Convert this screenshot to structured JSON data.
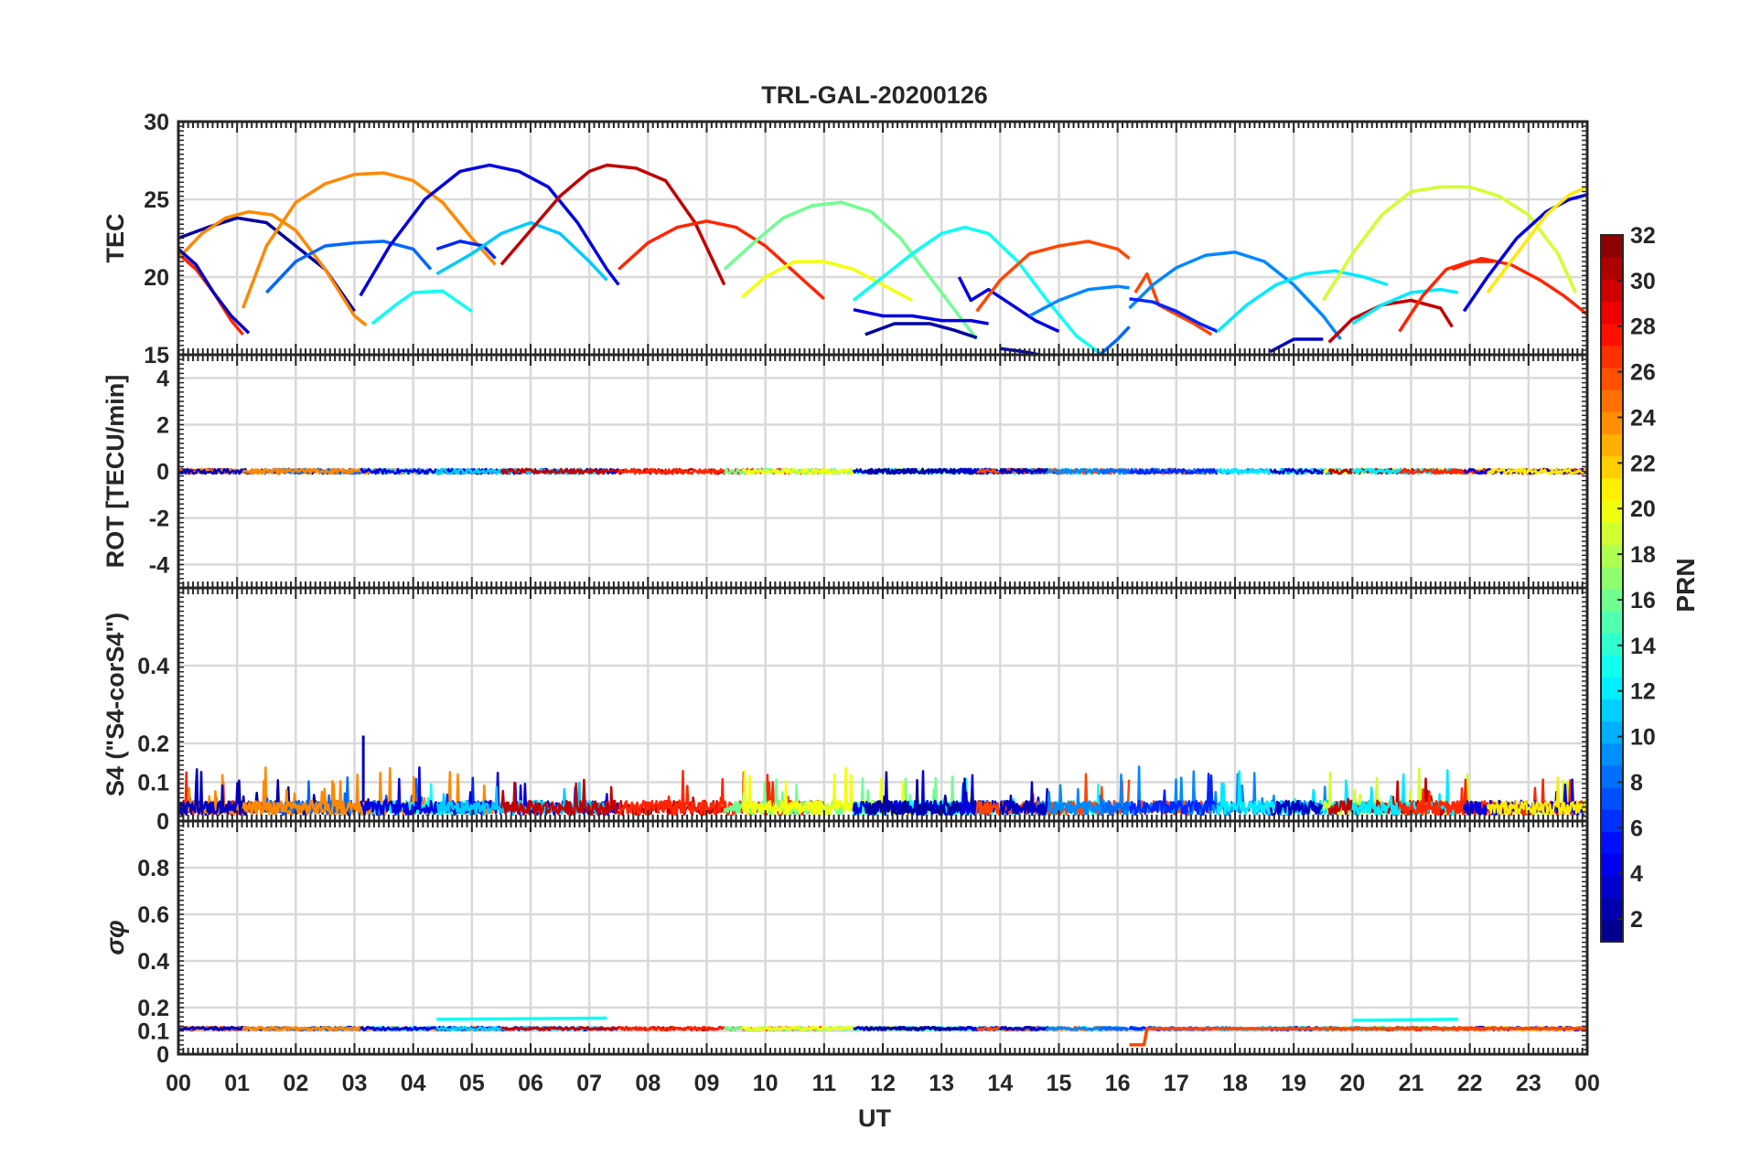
{
  "figure": {
    "title": "TRL-GAL-20200126",
    "xlabel": "UT",
    "x_tick_labels": [
      "00",
      "01",
      "02",
      "03",
      "04",
      "05",
      "06",
      "07",
      "08",
      "09",
      "10",
      "11",
      "12",
      "13",
      "14",
      "15",
      "16",
      "17",
      "18",
      "19",
      "20",
      "21",
      "22",
      "23",
      "00"
    ]
  },
  "colorbar": {
    "label": "PRN",
    "ticks": [
      2,
      4,
      6,
      8,
      10,
      12,
      14,
      16,
      18,
      20,
      22,
      24,
      26,
      28,
      30,
      32
    ],
    "range": [
      1,
      32
    ],
    "colormap": "jet"
  },
  "chart_data": [
    {
      "type": "line",
      "panel": "TEC",
      "ylabel": "TEC",
      "xlim": [
        0,
        24
      ],
      "ylim": [
        15,
        30
      ],
      "yticks": [
        15,
        20,
        25,
        30
      ],
      "grid": true,
      "series": [
        {
          "prn": 2,
          "x": [
            0.0,
            0.5,
            1.0,
            1.5,
            2.0,
            2.5,
            3.0
          ],
          "y": [
            22.5,
            23.2,
            23.8,
            23.5,
            22.0,
            20.5,
            17.8
          ]
        },
        {
          "prn": 27,
          "x": [
            0.0,
            0.3,
            0.6,
            0.9,
            1.1
          ],
          "y": [
            21.5,
            20.5,
            19.0,
            17.2,
            16.3
          ]
        },
        {
          "prn": 24,
          "x": [
            0.0,
            0.4,
            0.8,
            1.2,
            1.6,
            2.0,
            2.5,
            3.0,
            3.2
          ],
          "y": [
            21.2,
            22.8,
            23.8,
            24.2,
            24.0,
            23.0,
            20.5,
            17.5,
            16.9
          ]
        },
        {
          "prn": 3,
          "x": [
            0.0,
            0.3,
            0.6,
            0.9,
            1.2
          ],
          "y": [
            21.8,
            20.8,
            19.0,
            17.5,
            16.4
          ]
        },
        {
          "prn": 8,
          "x": [
            1.5,
            2.0,
            2.5,
            3.0,
            3.5,
            4.0,
            4.3
          ],
          "y": [
            19.0,
            21.0,
            22.0,
            22.2,
            22.3,
            21.8,
            20.5
          ]
        },
        {
          "prn": 24,
          "x": [
            1.1,
            1.5,
            2.0,
            2.5,
            3.0,
            3.5,
            4.0,
            4.5,
            5.0,
            5.4
          ],
          "y": [
            18.0,
            22.0,
            24.8,
            26.0,
            26.6,
            26.7,
            26.2,
            24.8,
            22.5,
            20.8
          ]
        },
        {
          "prn": 6,
          "x": [
            4.4,
            4.8,
            5.2,
            5.4
          ],
          "y": [
            21.8,
            22.3,
            22.0,
            21.2
          ]
        },
        {
          "prn": 13,
          "x": [
            3.3,
            3.7,
            4.0,
            4.5,
            5.0
          ],
          "y": [
            17.0,
            18.2,
            19.0,
            19.1,
            17.8
          ]
        },
        {
          "prn": 4,
          "x": [
            3.1,
            3.6,
            4.2,
            4.8,
            5.3,
            5.8,
            6.3,
            6.8,
            7.3,
            7.5
          ],
          "y": [
            18.8,
            22.0,
            25.0,
            26.8,
            27.2,
            26.8,
            25.8,
            23.5,
            20.5,
            19.5
          ]
        },
        {
          "prn": 11,
          "x": [
            4.4,
            5.0,
            5.5,
            6.0,
            6.5,
            7.0,
            7.3
          ],
          "y": [
            20.2,
            21.5,
            22.8,
            23.5,
            22.8,
            21.0,
            19.8
          ]
        },
        {
          "prn": 30,
          "x": [
            5.5,
            6.0,
            6.5,
            7.0,
            7.3,
            7.8,
            8.3,
            8.8,
            9.3
          ],
          "y": [
            20.8,
            23.0,
            25.2,
            26.8,
            27.2,
            27.0,
            26.2,
            23.5,
            19.5
          ]
        },
        {
          "prn": 27,
          "x": [
            7.5,
            8.0,
            8.5,
            9.0,
            9.5,
            10.0,
            10.5,
            11.0
          ],
          "y": [
            20.5,
            22.2,
            23.2,
            23.6,
            23.2,
            22.0,
            20.3,
            18.6
          ]
        },
        {
          "prn": 16,
          "x": [
            9.3,
            9.8,
            10.3,
            10.8,
            11.3,
            11.8,
            12.3,
            12.8,
            13.3,
            13.6
          ],
          "y": [
            20.5,
            22.2,
            23.8,
            24.6,
            24.8,
            24.2,
            22.5,
            20.0,
            17.5,
            16.0
          ]
        },
        {
          "prn": 20,
          "x": [
            9.6,
            10.0,
            10.5,
            11.0,
            11.5,
            12.0,
            12.5
          ],
          "y": [
            18.7,
            20.0,
            21.0,
            21.0,
            20.5,
            19.5,
            18.5
          ]
        },
        {
          "prn": 13,
          "x": [
            11.5,
            12.0,
            12.5,
            13.0,
            13.4,
            13.8,
            14.3,
            14.8,
            15.3,
            15.7
          ],
          "y": [
            18.5,
            20.0,
            21.5,
            22.8,
            23.2,
            22.8,
            21.0,
            18.5,
            16.2,
            15.1
          ]
        },
        {
          "prn": 4,
          "x": [
            11.5,
            12.0,
            12.5,
            13.0,
            13.5,
            13.8
          ],
          "y": [
            17.9,
            17.5,
            17.5,
            17.2,
            17.2,
            17.0
          ]
        },
        {
          "prn": 2,
          "x": [
            11.7,
            12.2,
            12.8,
            13.2,
            13.6
          ],
          "y": [
            16.3,
            17.0,
            17.0,
            16.6,
            16.1
          ]
        },
        {
          "prn": 4,
          "x": [
            13.3,
            13.5,
            13.8,
            14.2,
            14.6,
            15.0
          ],
          "y": [
            20.0,
            18.5,
            19.2,
            18.2,
            17.2,
            16.5
          ]
        },
        {
          "prn": 26,
          "x": [
            13.6,
            14.0,
            14.5,
            15.0,
            15.5,
            16.0,
            16.2
          ],
          "y": [
            17.8,
            19.8,
            21.5,
            22.0,
            22.3,
            21.8,
            21.2
          ]
        },
        {
          "prn": 9,
          "x": [
            14.5,
            15.0,
            15.5,
            16.0,
            16.2
          ],
          "y": [
            17.5,
            18.5,
            19.2,
            19.4,
            19.3
          ]
        },
        {
          "prn": 3,
          "x": [
            14.0,
            14.4,
            14.8
          ],
          "y": [
            15.4,
            15.2,
            14.9
          ]
        },
        {
          "prn": 8,
          "x": [
            15.7,
            16.0,
            16.2
          ],
          "y": [
            15.0,
            16.0,
            16.8
          ]
        },
        {
          "prn": 26,
          "x": [
            16.3,
            16.5,
            16.7,
            17.0,
            17.3,
            17.6
          ],
          "y": [
            19.0,
            20.2,
            18.2,
            17.6,
            17.0,
            16.3
          ]
        },
        {
          "prn": 9,
          "x": [
            16.2,
            16.6,
            17.0,
            17.5,
            18.0,
            18.5,
            19.0,
            19.5,
            19.8
          ],
          "y": [
            18.0,
            19.5,
            20.6,
            21.4,
            21.6,
            21.0,
            19.5,
            17.5,
            16.0
          ]
        },
        {
          "prn": 6,
          "x": [
            16.2,
            16.6,
            17.0,
            17.4,
            17.7
          ],
          "y": [
            18.6,
            18.4,
            17.8,
            17.0,
            16.5
          ]
        },
        {
          "prn": 12,
          "x": [
            17.7,
            18.2,
            18.7,
            19.2,
            19.7,
            20.2,
            20.6
          ],
          "y": [
            16.5,
            18.2,
            19.5,
            20.2,
            20.4,
            20.0,
            19.5
          ]
        },
        {
          "prn": 3,
          "x": [
            18.6,
            19.0,
            19.5
          ],
          "y": [
            15.2,
            16.0,
            16.0
          ]
        },
        {
          "prn": 19,
          "x": [
            19.5,
            20.0,
            20.5,
            21.0,
            21.5,
            22.0,
            22.5,
            23.0,
            23.5,
            23.8
          ],
          "y": [
            18.5,
            21.5,
            24.0,
            25.5,
            25.8,
            25.8,
            25.2,
            24.0,
            21.5,
            19.0
          ]
        },
        {
          "prn": 30,
          "x": [
            19.6,
            20.0,
            20.5,
            21.0,
            21.5,
            21.7
          ],
          "y": [
            15.8,
            17.3,
            18.2,
            18.5,
            18.0,
            16.8
          ]
        },
        {
          "prn": 12,
          "x": [
            20.0,
            20.5,
            21.0,
            21.5,
            21.8
          ],
          "y": [
            17.0,
            18.2,
            19.0,
            19.2,
            19.0
          ]
        },
        {
          "prn": 27,
          "x": [
            20.8,
            21.2,
            21.6,
            22.0,
            22.4
          ],
          "y": [
            16.5,
            18.8,
            20.5,
            21.0,
            21.0
          ]
        },
        {
          "prn": 27,
          "x": [
            21.7,
            22.2,
            22.7,
            23.2,
            23.6,
            24.0
          ],
          "y": [
            20.5,
            21.2,
            20.8,
            19.8,
            18.8,
            17.6
          ]
        },
        {
          "prn": 4,
          "x": [
            21.9,
            22.3,
            22.8,
            23.3,
            23.7,
            24.0
          ],
          "y": [
            17.8,
            20.0,
            22.5,
            24.2,
            25.0,
            25.3
          ]
        },
        {
          "prn": 21,
          "x": [
            22.3,
            22.8,
            23.3,
            23.7,
            24.0
          ],
          "y": [
            19.0,
            21.5,
            24.0,
            25.3,
            25.8
          ]
        }
      ]
    },
    {
      "type": "line",
      "panel": "ROT",
      "ylabel": "ROT [TECU/min]",
      "xlim": [
        0,
        24
      ],
      "ylim": [
        -5,
        5
      ],
      "yticks": [
        -4,
        -2,
        0,
        2,
        4
      ],
      "grid": true,
      "baseline_value": 0,
      "noise_amplitude": 0.15
    },
    {
      "type": "line",
      "panel": "S4",
      "ylabel": "S4 (\"S4-corS4\")",
      "xlim": [
        0,
        24
      ],
      "ylim": [
        0,
        0.6
      ],
      "yticks": [
        0,
        0.1,
        0.2,
        0.4
      ],
      "grid": true,
      "typical_level": 0.04,
      "max_spike": 0.22,
      "max_spike_ut": 3.15
    },
    {
      "type": "line",
      "panel": "sigma_phi",
      "ylabel": "σφ",
      "xlim": [
        0,
        24
      ],
      "ylim": [
        0,
        1
      ],
      "yticks": [
        0,
        0.1,
        0.2,
        0.4,
        0.6,
        0.8
      ],
      "grid": true,
      "typical_level": 0.11,
      "series": [
        {
          "prn": 13,
          "x": [
            4.4,
            7.3
          ],
          "y": [
            0.15,
            0.155
          ]
        },
        {
          "prn": 13,
          "x": [
            20.0,
            21.8
          ],
          "y": [
            0.145,
            0.15
          ]
        },
        {
          "prn": 26,
          "x": [
            16.2,
            16.45,
            16.5,
            24.0
          ],
          "y": [
            0.04,
            0.04,
            0.11,
            0.11
          ]
        }
      ]
    }
  ]
}
